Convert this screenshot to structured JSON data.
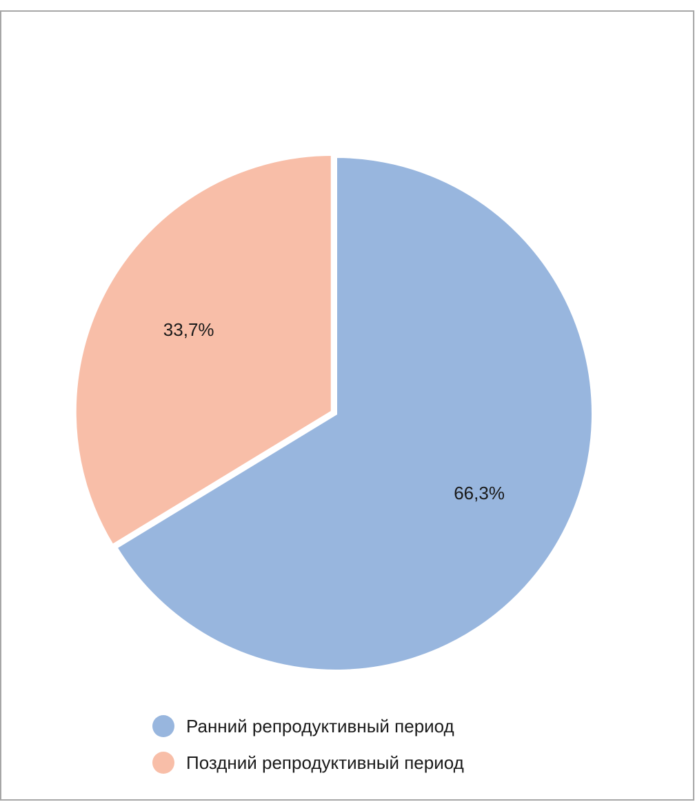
{
  "chart_data": {
    "type": "pie",
    "categories": [
      "Ранний репродуктивный период",
      "Поздний репродуктивный период"
    ],
    "values": [
      66.3,
      33.7
    ],
    "value_labels": [
      "66,3%",
      "33,7%"
    ],
    "colors": [
      "#98b6de",
      "#f8bea8"
    ]
  }
}
